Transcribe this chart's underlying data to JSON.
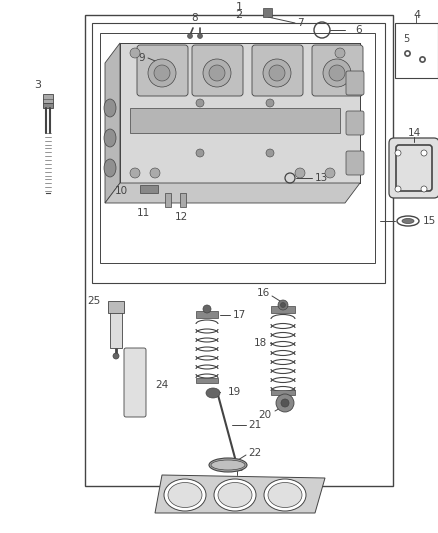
{
  "bg_color": "#ffffff",
  "lc": "#444444",
  "fig_width": 4.38,
  "fig_height": 5.33,
  "dpi": 100
}
